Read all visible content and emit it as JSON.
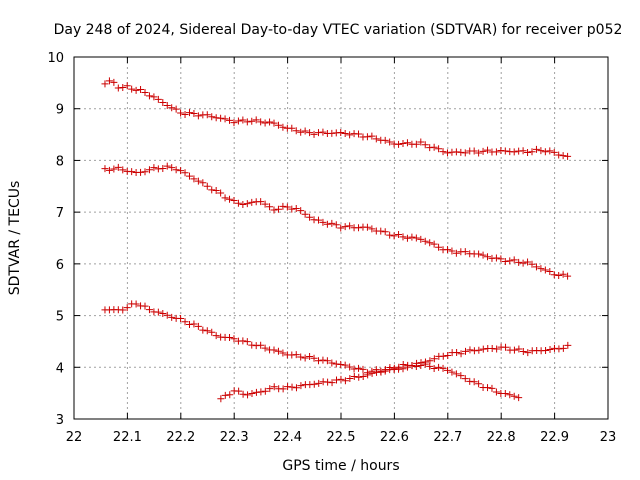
{
  "chart_data": {
    "type": "scatter",
    "title": "Day 248 of 2024, Sidereal Day-to-day VTEC variation (SDTVAR) for receiver p052",
    "xlabel": "GPS time / hours",
    "ylabel": "SDTVAR / TECUs",
    "xlim": [
      22,
      23
    ],
    "ylim": [
      3,
      10
    ],
    "x_ticks": [
      22,
      22.1,
      22.2,
      22.3,
      22.4,
      22.5,
      22.6,
      22.7,
      22.8,
      22.9,
      23
    ],
    "x_tick_labels": [
      "22",
      "22.1",
      "22.2",
      "22.3",
      "22.4",
      "22.5",
      "22.6",
      "22.7",
      "22.8",
      "22.9",
      "23"
    ],
    "y_ticks": [
      3,
      4,
      5,
      6,
      7,
      8,
      9,
      10
    ],
    "y_tick_labels": [
      "3",
      "4",
      "5",
      "6",
      "7",
      "8",
      "9",
      "10"
    ],
    "grid": true,
    "marker": "+",
    "marker_color": "#cc0000",
    "series": [
      {
        "name": "series-1",
        "x_start": 22.058,
        "x_end": 22.925,
        "anchors": [
          [
            22.058,
            9.48
          ],
          [
            22.07,
            9.55
          ],
          [
            22.085,
            9.4
          ],
          [
            22.1,
            9.42
          ],
          [
            22.13,
            9.33
          ],
          [
            22.15,
            9.22
          ],
          [
            22.2,
            8.92
          ],
          [
            22.24,
            8.88
          ],
          [
            22.26,
            8.85
          ],
          [
            22.3,
            8.75
          ],
          [
            22.33,
            8.77
          ],
          [
            22.37,
            8.73
          ],
          [
            22.4,
            8.62
          ],
          [
            22.44,
            8.53
          ],
          [
            22.5,
            8.53
          ],
          [
            22.53,
            8.5
          ],
          [
            22.57,
            8.42
          ],
          [
            22.6,
            8.32
          ],
          [
            22.65,
            8.33
          ],
          [
            22.7,
            8.15
          ],
          [
            22.75,
            8.17
          ],
          [
            22.8,
            8.18
          ],
          [
            22.85,
            8.17
          ],
          [
            22.88,
            8.2
          ],
          [
            22.925,
            8.07
          ]
        ]
      },
      {
        "name": "series-2",
        "x_start": 22.058,
        "x_end": 22.925,
        "anchors": [
          [
            22.058,
            7.82
          ],
          [
            22.08,
            7.85
          ],
          [
            22.1,
            7.8
          ],
          [
            22.12,
            7.75
          ],
          [
            22.14,
            7.82
          ],
          [
            22.17,
            7.87
          ],
          [
            22.19,
            7.85
          ],
          [
            22.22,
            7.68
          ],
          [
            22.25,
            7.5
          ],
          [
            22.3,
            7.2
          ],
          [
            22.32,
            7.15
          ],
          [
            22.35,
            7.22
          ],
          [
            22.37,
            7.05
          ],
          [
            22.4,
            7.1
          ],
          [
            22.42,
            7.05
          ],
          [
            22.45,
            6.85
          ],
          [
            22.5,
            6.72
          ],
          [
            22.55,
            6.7
          ],
          [
            22.6,
            6.55
          ],
          [
            22.65,
            6.48
          ],
          [
            22.7,
            6.25
          ],
          [
            22.75,
            6.2
          ],
          [
            22.8,
            6.08
          ],
          [
            22.85,
            6.02
          ],
          [
            22.9,
            5.8
          ],
          [
            22.925,
            5.76
          ]
        ]
      },
      {
        "name": "series-3",
        "x_start": 22.058,
        "x_end": 22.835,
        "anchors": [
          [
            22.058,
            5.12
          ],
          [
            22.08,
            5.1
          ],
          [
            22.1,
            5.15
          ],
          [
            22.115,
            5.25
          ],
          [
            22.14,
            5.12
          ],
          [
            22.2,
            4.92
          ],
          [
            22.24,
            4.75
          ],
          [
            22.27,
            4.6
          ],
          [
            22.3,
            4.55
          ],
          [
            22.35,
            4.4
          ],
          [
            22.4,
            4.25
          ],
          [
            22.45,
            4.17
          ],
          [
            22.5,
            4.05
          ],
          [
            22.55,
            3.92
          ],
          [
            22.6,
            3.95
          ],
          [
            22.65,
            4.05
          ],
          [
            22.7,
            3.95
          ],
          [
            22.75,
            3.7
          ],
          [
            22.8,
            3.5
          ],
          [
            22.835,
            3.42
          ]
        ]
      },
      {
        "name": "series-4",
        "x_start": 22.275,
        "x_end": 22.925,
        "anchors": [
          [
            22.275,
            3.38
          ],
          [
            22.3,
            3.55
          ],
          [
            22.32,
            3.47
          ],
          [
            22.35,
            3.52
          ],
          [
            22.37,
            3.6
          ],
          [
            22.4,
            3.6
          ],
          [
            22.45,
            3.68
          ],
          [
            22.5,
            3.75
          ],
          [
            22.55,
            3.85
          ],
          [
            22.6,
            4.0
          ],
          [
            22.65,
            4.08
          ],
          [
            22.7,
            4.25
          ],
          [
            22.75,
            4.33
          ],
          [
            22.8,
            4.38
          ],
          [
            22.85,
            4.3
          ],
          [
            22.9,
            4.35
          ],
          [
            22.925,
            4.4
          ]
        ]
      }
    ]
  }
}
